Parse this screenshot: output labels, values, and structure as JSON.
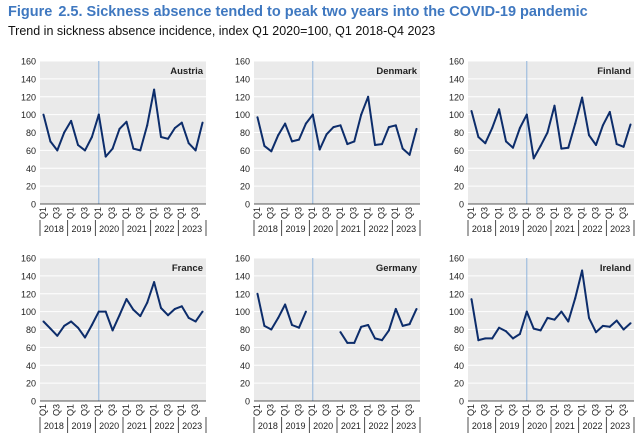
{
  "figure": {
    "label": "Figure",
    "number": "2.5.",
    "title": "Sickness absence tended to peak two years into the COVID-19 pandemic",
    "subtitle": "Trend in sickness absence incidence, index Q1 2020=100, Q1 2018-Q4 2023"
  },
  "colors": {
    "line": "#0d2d6b",
    "plot_bg": "#eaeaea",
    "grid": "#ffffff",
    "marker": "#8fb4dc",
    "title": "#3f78c0"
  },
  "chart_data": [
    {
      "type": "line",
      "title": "Austria",
      "ylim": [
        0,
        160
      ],
      "yticks": [
        0,
        20,
        40,
        60,
        80,
        100,
        120,
        140,
        160
      ],
      "quarter_labels": [
        "Q1",
        "Q3",
        "Q1",
        "Q3",
        "Q1",
        "Q3",
        "Q1",
        "Q3",
        "Q1",
        "Q3",
        "Q1",
        "Q3"
      ],
      "years": [
        "2018",
        "2019",
        "2020",
        "2021",
        "2022",
        "2023"
      ],
      "marker_at": "Q1 2020",
      "values": [
        100,
        70,
        60,
        80,
        93,
        66,
        60,
        75,
        100,
        53,
        62,
        84,
        92,
        62,
        60,
        88,
        128,
        75,
        73,
        85,
        91,
        68,
        60,
        91
      ]
    },
    {
      "type": "line",
      "title": "Denmark",
      "ylim": [
        0,
        160
      ],
      "yticks": [
        0,
        20,
        40,
        60,
        80,
        100,
        120,
        140,
        160
      ],
      "quarter_labels": [
        "Q1",
        "Q3",
        "Q1",
        "Q3",
        "Q1",
        "Q3",
        "Q1",
        "Q3",
        "Q1",
        "Q3",
        "Q1",
        "Q3"
      ],
      "years": [
        "2018",
        "2019",
        "2020",
        "2021",
        "2022",
        "2023"
      ],
      "marker_at": "Q1 2020",
      "values": [
        97,
        65,
        59,
        77,
        90,
        70,
        72,
        90,
        100,
        61,
        78,
        86,
        88,
        67,
        70,
        100,
        120,
        66,
        67,
        86,
        88,
        62,
        55,
        84
      ]
    },
    {
      "type": "line",
      "title": "Finland",
      "ylim": [
        0,
        160
      ],
      "yticks": [
        0,
        20,
        40,
        60,
        80,
        100,
        120,
        140,
        160
      ],
      "quarter_labels": [
        "Q1",
        "Q3",
        "Q1",
        "Q3",
        "Q1",
        "Q3",
        "Q1",
        "Q3",
        "Q1",
        "Q3",
        "Q1",
        "Q3"
      ],
      "years": [
        "2018",
        "2019",
        "2020",
        "2021",
        "2022",
        "2023"
      ],
      "marker_at": "Q1 2020",
      "values": [
        104,
        75,
        68,
        85,
        106,
        70,
        63,
        85,
        100,
        51,
        65,
        80,
        110,
        62,
        63,
        90,
        119,
        77,
        66,
        88,
        103,
        67,
        64,
        89
      ]
    },
    {
      "type": "line",
      "title": "France",
      "ylim": [
        0,
        160
      ],
      "yticks": [
        0,
        20,
        40,
        60,
        80,
        100,
        120,
        140,
        160
      ],
      "quarter_labels": [
        "Q1",
        "Q3",
        "Q1",
        "Q3",
        "Q1",
        "Q3",
        "Q1",
        "Q3",
        "Q1",
        "Q3",
        "Q1",
        "Q3"
      ],
      "years": [
        "2018",
        "2019",
        "2020",
        "2021",
        "2022",
        "2023"
      ],
      "marker_at": "Q1 2020",
      "values": [
        89,
        81,
        73,
        84,
        89,
        82,
        71,
        85,
        100,
        100,
        79,
        96,
        114,
        102,
        95,
        110,
        133,
        104,
        96,
        103,
        106,
        93,
        89,
        100
      ]
    },
    {
      "type": "line",
      "title": "Germany",
      "ylim": [
        0,
        160
      ],
      "yticks": [
        0,
        20,
        40,
        60,
        80,
        100,
        120,
        140,
        160
      ],
      "quarter_labels": [
        "Q1",
        "Q3",
        "Q1",
        "Q3",
        "Q1",
        "Q3",
        "Q1",
        "Q3",
        "Q1",
        "Q3",
        "Q1",
        "Q3"
      ],
      "years": [
        "2018",
        "2019",
        "2020",
        "2021",
        "2022",
        "2023"
      ],
      "marker_at": "Q1 2020",
      "values": [
        120,
        84,
        80,
        93,
        108,
        85,
        82,
        100,
        null,
        null,
        null,
        null,
        77,
        65,
        65,
        83,
        85,
        70,
        68,
        79,
        103,
        84,
        86,
        103
      ]
    },
    {
      "type": "line",
      "title": "Ireland",
      "ylim": [
        0,
        160
      ],
      "yticks": [
        0,
        20,
        40,
        60,
        80,
        100,
        120,
        140,
        160
      ],
      "quarter_labels": [
        "Q1",
        "Q3",
        "Q1",
        "Q3",
        "Q1",
        "Q3",
        "Q1",
        "Q3",
        "Q1",
        "Q3",
        "Q1",
        "Q3"
      ],
      "years": [
        "2018",
        "2019",
        "2020",
        "2021",
        "2022",
        "2023"
      ],
      "marker_at": "Q1 2020",
      "values": [
        114,
        68,
        70,
        70,
        82,
        78,
        70,
        75,
        100,
        81,
        79,
        93,
        91,
        100,
        89,
        115,
        146,
        93,
        77,
        84,
        83,
        90,
        80,
        87
      ]
    }
  ]
}
